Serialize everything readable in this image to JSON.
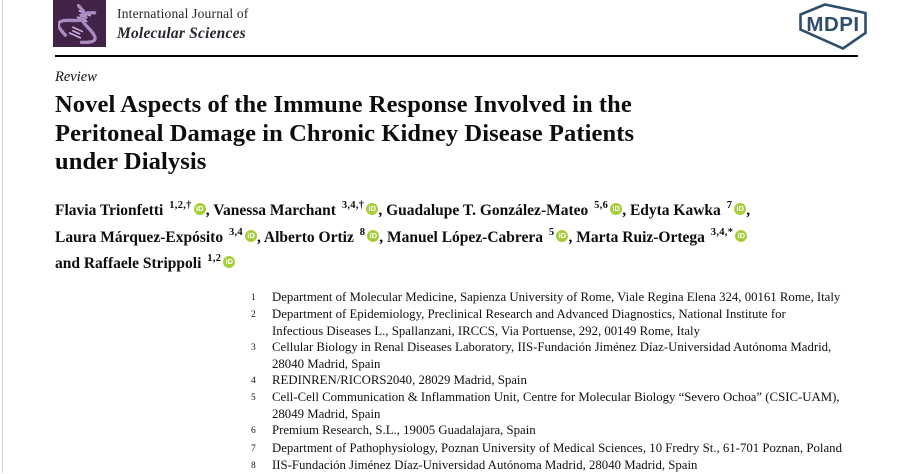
{
  "journal": {
    "line1": "International Journal of",
    "line2": "Molecular Sciences",
    "logo": {
      "icon": "dna-helix-icon",
      "bg_color": "#412348",
      "strand_color": "#A98BC2"
    }
  },
  "publisher": {
    "name": "MDPI",
    "logo_color": "#2E4E6E"
  },
  "article": {
    "type_label": "Review",
    "title_lines": [
      "Novel Aspects of the Immune Response Involved in the",
      "Peritoneal Damage in Chronic Kidney Disease Patients",
      "under Dialysis"
    ]
  },
  "orcid": {
    "label": "iD",
    "color": "#A6CE39"
  },
  "authors": {
    "lines": [
      [
        {
          "name": "Flavia Trionfetti",
          "sup": "1,2,†",
          "orcid": true,
          "sep": ", "
        },
        {
          "name": "Vanessa Marchant",
          "sup": "3,4,†",
          "orcid": true,
          "sep": ", "
        },
        {
          "name": "Guadalupe T. González-Mateo",
          "sup": "5,6",
          "orcid": true,
          "sep": ", "
        },
        {
          "name": "Edyta Kawka",
          "sup": "7",
          "orcid": true,
          "sep": ","
        }
      ],
      [
        {
          "name": "Laura Márquez-Expósito",
          "sup": "3,4",
          "orcid": true,
          "sep": ", "
        },
        {
          "name": "Alberto Ortiz",
          "sup": "8",
          "orcid": true,
          "sep": ", "
        },
        {
          "name": "Manuel López-Cabrera",
          "sup": "5",
          "orcid": true,
          "sep": ", "
        },
        {
          "name": "Marta Ruiz-Ortega",
          "sup": "3,4,*",
          "orcid": true,
          "sep": ""
        }
      ],
      [
        {
          "name": "and Raffaele Strippoli",
          "sup": "1,2",
          "orcid": true,
          "sep": ""
        }
      ]
    ]
  },
  "affiliations": [
    {
      "num": "1",
      "lines": [
        "Department of Molecular Medicine, Sapienza University of Rome, Viale Regina Elena 324, 00161 Rome, Italy"
      ]
    },
    {
      "num": "2",
      "lines": [
        "Department of Epidemiology, Preclinical Research and Advanced Diagnostics, National Institute for",
        "Infectious Diseases L., Spallanzani, IRCCS, Via Portuense, 292, 00149 Rome, Italy"
      ]
    },
    {
      "num": "3",
      "lines": [
        "Cellular Biology in Renal Diseases Laboratory, IIS-Fundación Jiménez Díaz-Universidad Autónoma Madrid,",
        "28040 Madrid, Spain"
      ]
    },
    {
      "num": "4",
      "lines": [
        "REDINREN/RICORS2040, 28029 Madrid, Spain"
      ]
    },
    {
      "num": "5",
      "lines": [
        "Cell-Cell Communication & Inflammation Unit, Centre for Molecular Biology “Severo Ochoa” (CSIC-UAM),",
        "28049 Madrid, Spain"
      ]
    },
    {
      "num": "6",
      "lines": [
        "Premium Research, S.L., 19005 Guadalajara, Spain"
      ]
    },
    {
      "num": "7",
      "lines": [
        "Department of Pathophysiology, Poznan University of Medical Sciences, 10 Fredry St., 61-701 Poznan, Poland"
      ]
    },
    {
      "num": "8",
      "lines": [
        "IIS-Fundación Jiménez Díaz-Universidad Autónoma Madrid, 28040 Madrid, Spain"
      ]
    }
  ]
}
